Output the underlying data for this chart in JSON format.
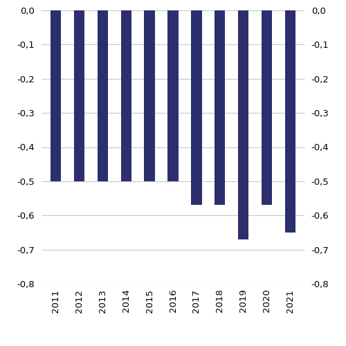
{
  "categories": [
    "2011",
    "2012",
    "2013",
    "2014",
    "2015",
    "2016",
    "2017",
    "2018",
    "2019",
    "2020",
    "2021"
  ],
  "values": [
    -0.5,
    -0.5,
    -0.5,
    -0.5,
    -0.5,
    -0.5,
    -0.57,
    -0.57,
    -0.67,
    -0.57,
    -0.65
  ],
  "bar_color": "#2b2f6e",
  "ylim": [
    -0.8,
    0.0
  ],
  "yticks": [
    0.0,
    -0.1,
    -0.2,
    -0.3,
    -0.4,
    -0.5,
    -0.6,
    -0.7,
    -0.8
  ],
  "ytick_labels_left": [
    "0,0",
    "-0,1",
    "-0,2",
    "-0,3",
    "-0,4",
    "-0,5",
    "-0,6",
    "-0,7",
    "-0,8"
  ],
  "ytick_labels_right": [
    "0,0",
    "-0,1",
    "-0,2",
    "-0,3",
    "-0,4",
    "-0,5",
    "-0,6",
    "-0,7",
    "-0,8"
  ],
  "grid_color": "#c8c8c8",
  "background_color": "#ffffff",
  "bar_width": 0.45,
  "tick_fontsize": 9.5
}
